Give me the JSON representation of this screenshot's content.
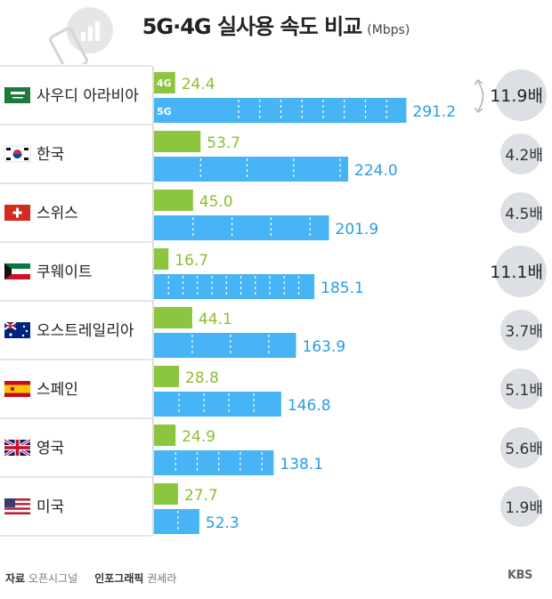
{
  "header": {
    "title": "5G·4G 실사용 속도 비교",
    "unit": "(Mbps)"
  },
  "chart_data": {
    "type": "bar",
    "title": "5G·4G 실사용 속도 비교",
    "unit": "Mbps",
    "categories": [
      "사우디 아라비아",
      "한국",
      "스위스",
      "쿠웨이트",
      "오스트레일리아",
      "스페인",
      "영국",
      "미국"
    ],
    "series": [
      {
        "name": "4G",
        "values": [
          24.4,
          53.7,
          45.0,
          16.7,
          44.1,
          28.8,
          24.9,
          27.7
        ]
      },
      {
        "name": "5G",
        "values": [
          291.2,
          224.0,
          201.9,
          185.1,
          163.9,
          146.8,
          138.1,
          52.3
        ]
      }
    ],
    "value_labels_4g": [
      "24.4",
      "53.7",
      "45.0",
      "16.7",
      "44.1",
      "28.8",
      "24.9",
      "27.7"
    ],
    "value_labels_5g": [
      "291.2",
      "224.0",
      "201.9",
      "185.1",
      "163.9",
      "146.8",
      "138.1",
      "52.3"
    ],
    "ratios": [
      "11.9배",
      "4.2배",
      "4.5배",
      "11.1배",
      "3.7배",
      "5.1배",
      "5.6배",
      "1.9배"
    ],
    "in_bar_labels": {
      "g4": "4G",
      "g5": "5G"
    },
    "xlim": [
      0,
      300
    ],
    "colors": {
      "g4": "#8cc63f",
      "g5": "#47b4f5",
      "circle": "#dcdfe3"
    },
    "flag_icons": [
      "saudi-flag-icon",
      "korea-flag-icon",
      "switzerland-flag-icon",
      "kuwait-flag-icon",
      "australia-flag-icon",
      "spain-flag-icon",
      "uk-flag-icon",
      "usa-flag-icon"
    ]
  },
  "footer": {
    "source_label": "자료",
    "source": "오픈시그널",
    "credit_label": "인포그래픽",
    "credit": "권세라"
  },
  "logo": "KBS"
}
